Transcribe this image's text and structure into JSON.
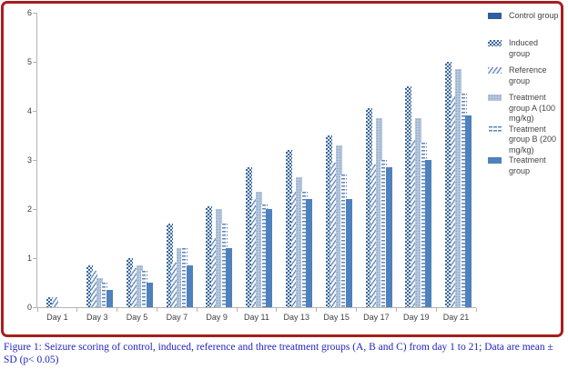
{
  "figure": {
    "caption": "Figure 1: Seizure scoring of control, induced, reference and three treatment groups (A, B and C) from day 1 to 21; Data are mean ± SD (p< 0.05)"
  },
  "colors": {
    "frame_border": "#a81e1e",
    "caption_text": "#2222c4",
    "axis_line": "#b3b3b3",
    "tick_label_text": "#3f3f3f",
    "bar_blue_primary": "#4f81bd",
    "bar_blue_dark": "#2f5f9e",
    "bar_blue_light": "#b9c9dd"
  },
  "chart_data": {
    "type": "bar",
    "title": "",
    "xlabel": "",
    "ylabel": "",
    "ylim": [
      0,
      6
    ],
    "yticks": [
      0,
      1,
      2,
      3,
      4,
      5,
      6
    ],
    "grid": false,
    "legend_position": "right",
    "categories": [
      "Day 1",
      "Day 3",
      "Day 5",
      "Day 7",
      "Day 9",
      "Day 11",
      "Day 13",
      "Day 15",
      "Day 17",
      "Day 19",
      "Day 21"
    ],
    "series": [
      {
        "name": "Control group",
        "pattern": "solid-dark",
        "values": [
          0,
          0,
          0,
          0,
          0,
          0,
          0,
          0,
          0,
          0,
          0
        ]
      },
      {
        "name": "Induced group",
        "pattern": "checker",
        "values": [
          0.2,
          0.85,
          1.0,
          1.7,
          2.05,
          2.85,
          3.2,
          3.5,
          4.05,
          4.5,
          5.0
        ]
      },
      {
        "name": "Reference group",
        "pattern": "diagonal-hatch",
        "values": [
          0.2,
          0.75,
          0.8,
          0.9,
          1.4,
          2.2,
          2.35,
          2.95,
          2.9,
          3.4,
          4.3
        ]
      },
      {
        "name": "Treatment group A (100 mg/kg)",
        "pattern": "light-dots",
        "values": [
          0,
          0.6,
          0.85,
          1.2,
          2.0,
          2.35,
          2.65,
          3.3,
          3.85,
          3.85,
          4.85
        ]
      },
      {
        "name": "Treatment group B (200 mg/kg)",
        "pattern": "dashes",
        "values": [
          0,
          0.5,
          0.75,
          1.2,
          1.7,
          2.1,
          2.35,
          2.7,
          3.0,
          3.35,
          4.35
        ]
      },
      {
        "name": "Treatment group",
        "pattern": "solid",
        "values": [
          0,
          0.35,
          0.5,
          0.85,
          1.2,
          2.0,
          2.2,
          2.2,
          2.85,
          3.0,
          3.9
        ]
      }
    ]
  }
}
